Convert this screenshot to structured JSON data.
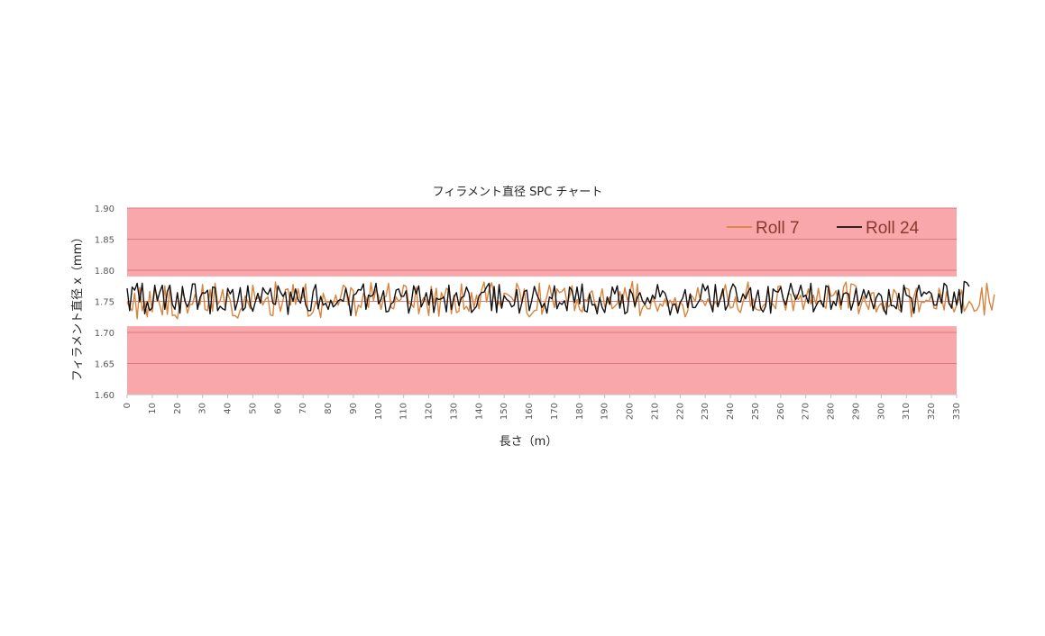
{
  "chart_data": {
    "type": "line",
    "title": "フィラメント直径 SPC チャート",
    "xlabel": "長さ（m）",
    "ylabel": "フィラメント直径 x（mm）",
    "xlim": [
      0,
      330
    ],
    "ylim": [
      1.6,
      1.9
    ],
    "ytick_step": 0.05,
    "xtick_step": 10,
    "grid": true,
    "legend_position": "top-right",
    "out_of_control_bands": [
      [
        1.6,
        1.71
      ],
      [
        1.79,
        1.9
      ]
    ],
    "band_color": "#f9a7ab",
    "series": [
      {
        "name": "Roll 7",
        "color": "#d8843e",
        "x_start": 0,
        "x_step": 1,
        "values": [
          1.749,
          1.74,
          1.735,
          1.763,
          1.722,
          1.772,
          1.735,
          1.75,
          1.725,
          1.766,
          1.733,
          1.77,
          1.758,
          1.744,
          1.728,
          1.775,
          1.729,
          1.773,
          1.727,
          1.728,
          1.722,
          1.747,
          1.764,
          1.754,
          1.731,
          1.745,
          1.745,
          1.761,
          1.746,
          1.745,
          1.777,
          1.737,
          1.735,
          1.769,
          1.734,
          1.779,
          1.745,
          1.751,
          1.769,
          1.74,
          1.763,
          1.752,
          1.727,
          1.727,
          1.723,
          1.736,
          1.741,
          1.759,
          1.749,
          1.738,
          1.776,
          1.753,
          1.755,
          1.757,
          1.744,
          1.753,
          1.757,
          1.728,
          1.727,
          1.781,
          1.754,
          1.734,
          1.752,
          1.769,
          1.77,
          1.744,
          1.777,
          1.745,
          1.77,
          1.752,
          1.757,
          1.778,
          1.726,
          1.728,
          1.733,
          1.749,
          1.743,
          1.724,
          1.763,
          1.75,
          1.748,
          1.751,
          1.746,
          1.76,
          1.744,
          1.758,
          1.776,
          1.772,
          1.744,
          1.772,
          1.767,
          1.727,
          1.744,
          1.74,
          1.763,
          1.756,
          1.74,
          1.78,
          1.751,
          1.769,
          1.759,
          1.737,
          1.755,
          1.758,
          1.779,
          1.74,
          1.738,
          1.757,
          1.75,
          1.754,
          1.776,
          1.774,
          1.747,
          1.746,
          1.74,
          1.773,
          1.73,
          1.749,
          1.756,
          1.751,
          1.727,
          1.774,
          1.747,
          1.771,
          1.726,
          1.764,
          1.754,
          1.771,
          1.768,
          1.73,
          1.76,
          1.732,
          1.734,
          1.778,
          1.737,
          1.742,
          1.734,
          1.764,
          1.74,
          1.76,
          1.738,
          1.768,
          1.781,
          1.749,
          1.769,
          1.78,
          1.759,
          1.742,
          1.749,
          1.739,
          1.763,
          1.762,
          1.759,
          1.756,
          1.749,
          1.779,
          1.769,
          1.748,
          1.77,
          1.731,
          1.725,
          1.73,
          1.735,
          1.736,
          1.779,
          1.729,
          1.744,
          1.758,
          1.776,
          1.757,
          1.74,
          1.77,
          1.764,
          1.766,
          1.771,
          1.747,
          1.758,
          1.775,
          1.735,
          1.753,
          1.737,
          1.733,
          1.753,
          1.751,
          1.763,
          1.767,
          1.747,
          1.738,
          1.752,
          1.77,
          1.741,
          1.748,
          1.757,
          1.738,
          1.742,
          1.746,
          1.766,
          1.747,
          1.772,
          1.752,
          1.763,
          1.782,
          1.74,
          1.778,
          1.727,
          1.74,
          1.745,
          1.738,
          1.738,
          1.759,
          1.747,
          1.734,
          1.746,
          1.742,
          1.754,
          1.742,
          1.752,
          1.744,
          1.756,
          1.737,
          1.749,
          1.744,
          1.725,
          1.734,
          1.761,
          1.757,
          1.75,
          1.772,
          1.753,
          1.751,
          1.743,
          1.754,
          1.746,
          1.741,
          1.75,
          1.742,
          1.753,
          1.762,
          1.777,
          1.752,
          1.739,
          1.741,
          1.757,
          1.737,
          1.732,
          1.749,
          1.76,
          1.781,
          1.742,
          1.754,
          1.738,
          1.736,
          1.736,
          1.743,
          1.746,
          1.77,
          1.746,
          1.745,
          1.738,
          1.774,
          1.775,
          1.753,
          1.736,
          1.763,
          1.761,
          1.735,
          1.761,
          1.753,
          1.76,
          1.737,
          1.754,
          1.77,
          1.746,
          1.76,
          1.746,
          1.771,
          1.746,
          1.744,
          1.739,
          1.776,
          1.758,
          1.76,
          1.767,
          1.751,
          1.737,
          1.773,
          1.781,
          1.739,
          1.778,
          1.777,
          1.774,
          1.73,
          1.744,
          1.758,
          1.746,
          1.737,
          1.763,
          1.764,
          1.733,
          1.742,
          1.747,
          1.734,
          1.748,
          1.741,
          1.748,
          1.769,
          1.763,
          1.737,
          1.733,
          1.771,
          1.771,
          1.769,
          1.725,
          1.758,
          1.771,
          1.733,
          1.749,
          1.748,
          1.752,
          1.75,
          1.761,
          1.739,
          1.738,
          1.771,
          1.757,
          1.736,
          1.766,
          1.745,
          1.745,
          1.733,
          1.744,
          1.754,
          1.768,
          1.734,
          1.741,
          1.75,
          1.745,
          1.734,
          1.736,
          1.743,
          1.772,
          1.728,
          1.779,
          1.75,
          1.736,
          1.761
        ]
      },
      {
        "name": "Roll 24",
        "color": "#111111",
        "x_start": 0,
        "x_step": 1,
        "values": [
          1.771,
          1.735,
          1.773,
          1.768,
          1.779,
          1.749,
          1.779,
          1.73,
          1.749,
          1.735,
          1.74,
          1.776,
          1.751,
          1.765,
          1.776,
          1.737,
          1.766,
          1.776,
          1.745,
          1.737,
          1.764,
          1.731,
          1.774,
          1.75,
          1.741,
          1.751,
          1.778,
          1.778,
          1.737,
          1.756,
          1.764,
          1.763,
          1.768,
          1.73,
          1.773,
          1.772,
          1.735,
          1.742,
          1.738,
          1.736,
          1.771,
          1.762,
          1.769,
          1.736,
          1.751,
          1.772,
          1.735,
          1.74,
          1.775,
          1.744,
          1.734,
          1.749,
          1.763,
          1.747,
          1.772,
          1.765,
          1.761,
          1.771,
          1.747,
          1.745,
          1.775,
          1.765,
          1.758,
          1.765,
          1.729,
          1.765,
          1.75,
          1.77,
          1.753,
          1.747,
          1.772,
          1.745,
          1.735,
          1.735,
          1.766,
          1.777,
          1.738,
          1.758,
          1.744,
          1.747,
          1.737,
          1.752,
          1.741,
          1.745,
          1.751,
          1.753,
          1.75,
          1.771,
          1.754,
          1.727,
          1.76,
          1.762,
          1.769,
          1.768,
          1.778,
          1.737,
          1.76,
          1.758,
          1.761,
          1.779,
          1.746,
          1.753,
          1.767,
          1.733,
          1.734,
          1.746,
          1.749,
          1.768,
          1.77,
          1.758,
          1.758,
          1.767,
          1.731,
          1.746,
          1.775,
          1.762,
          1.775,
          1.741,
          1.75,
          1.764,
          1.744,
          1.769,
          1.732,
          1.755,
          1.753,
          1.754,
          1.757,
          1.733,
          1.776,
          1.737,
          1.756,
          1.764,
          1.743,
          1.756,
          1.758,
          1.773,
          1.763,
          1.732,
          1.737,
          1.742,
          1.759,
          1.764,
          1.765,
          1.773,
          1.779,
          1.735,
          1.774,
          1.732,
          1.777,
          1.739,
          1.759,
          1.753,
          1.75,
          1.741,
          1.744,
          1.769,
          1.731,
          1.747,
          1.766,
          1.768,
          1.735,
          1.752,
          1.774,
          1.761,
          1.752,
          1.74,
          1.747,
          1.731,
          1.757,
          1.754,
          1.775,
          1.738,
          1.748,
          1.745,
          1.751,
          1.735,
          1.773,
          1.767,
          1.748,
          1.773,
          1.746,
          1.778,
          1.735,
          1.733,
          1.762,
          1.744,
          1.745,
          1.73,
          1.756,
          1.74,
          1.732,
          1.757,
          1.745,
          1.773,
          1.762,
          1.775,
          1.739,
          1.761,
          1.73,
          1.733,
          1.769,
          1.762,
          1.742,
          1.757,
          1.764,
          1.751,
          1.745,
          1.756,
          1.747,
          1.76,
          1.754,
          1.777,
          1.757,
          1.767,
          1.763,
          1.75,
          1.728,
          1.744,
          1.746,
          1.731,
          1.748,
          1.755,
          1.769,
          1.74,
          1.762,
          1.74,
          1.74,
          1.747,
          1.754,
          1.778,
          1.767,
          1.775,
          1.747,
          1.733,
          1.777,
          1.741,
          1.755,
          1.77,
          1.736,
          1.744,
          1.767,
          1.778,
          1.772,
          1.75,
          1.749,
          1.762,
          1.754,
          1.765,
          1.772,
          1.735,
          1.752,
          1.768,
          1.739,
          1.733,
          1.742,
          1.774,
          1.731,
          1.77,
          1.766,
          1.765,
          1.773,
          1.754,
          1.744,
          1.761,
          1.779,
          1.763,
          1.753,
          1.762,
          1.776,
          1.757,
          1.76,
          1.747,
          1.779,
          1.733,
          1.742,
          1.75,
          1.751,
          1.741,
          1.775,
          1.773,
          1.737,
          1.75,
          1.743,
          1.768,
          1.744,
          1.762,
          1.764,
          1.762,
          1.736,
          1.75,
          1.771,
          1.743,
          1.754,
          1.769,
          1.755,
          1.767,
          1.753,
          1.738,
          1.756,
          1.763,
          1.759,
          1.738,
          1.729,
          1.769,
          1.743,
          1.743,
          1.738,
          1.763,
          1.733,
          1.776,
          1.76,
          1.758,
          1.755,
          1.731,
          1.762,
          1.776,
          1.758,
          1.765,
          1.762,
          1.766,
          1.762,
          1.744,
          1.744,
          1.762,
          1.747,
          1.779,
          1.775,
          1.747,
          1.739,
          1.765,
          1.744,
          1.769,
          1.731,
          1.782,
          1.78,
          1.774
        ]
      }
    ]
  }
}
